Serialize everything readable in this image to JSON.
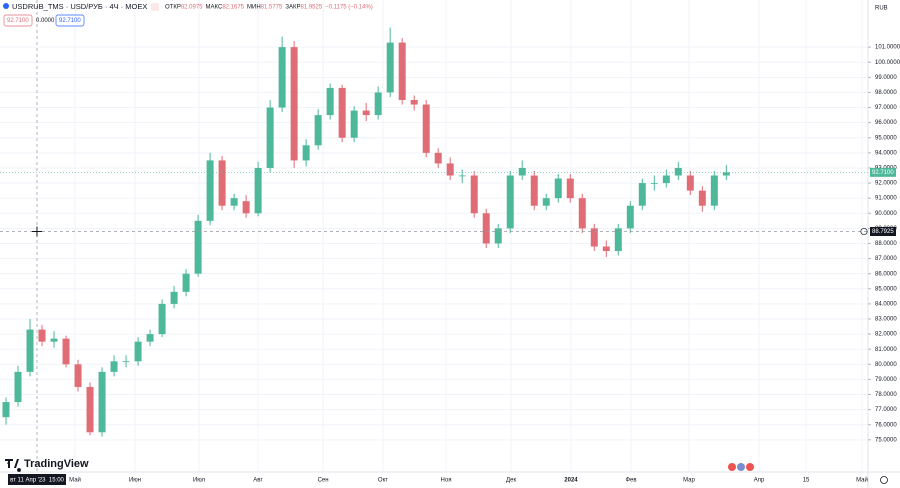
{
  "chart_data": {
    "type": "candlestick",
    "symbol": "USDRUB_TMS · USD/РУБ · 4Ч · MOEX",
    "ohlc_legend": [
      {
        "label": "ОТКР",
        "value": "82.0975"
      },
      {
        "label": "МАКС",
        "value": "82.1675"
      },
      {
        "label": "МИН",
        "value": "81.5775"
      },
      {
        "label": "ЗАКР",
        "value": "81.9525"
      }
    ],
    "change": "−0.1175 (−0.14%)",
    "inputs": [
      "92.7100",
      "0.0000",
      "92.7100"
    ],
    "currency": "RUB",
    "crosshair_time": "вт 11 Апр '23  15:00",
    "brand": "TradingView",
    "up_color": "#4db89a",
    "down_color": "#e06c75",
    "candles": {
      "open": [
        76.5,
        77.5,
        79.5,
        82.3,
        81.5,
        81.7,
        80.0,
        78.5,
        75.5,
        79.5,
        80.2,
        80.2,
        81.5,
        82.0,
        84.0,
        84.8,
        86.0,
        89.5,
        93.5,
        90.5,
        90.8,
        90.0,
        93.0,
        97.0,
        101.0,
        93.5,
        94.5,
        96.5,
        98.3,
        95.0,
        96.8,
        96.5,
        98.0,
        101.3,
        97.5,
        97.2,
        94.0,
        93.3,
        92.5,
        92.5,
        90.0,
        88.0,
        89.0,
        92.5,
        92.5,
        90.5,
        91.0,
        92.3,
        91.0,
        89.0,
        87.8,
        87.5,
        89.0,
        90.5,
        92.0,
        92.0,
        92.5,
        92.5,
        91.5,
        90.5,
        92.5
      ],
      "high": [
        77.8,
        79.9,
        83.0,
        82.6,
        82.2,
        81.9,
        80.3,
        78.8,
        79.8,
        80.6,
        80.6,
        81.8,
        82.3,
        84.3,
        85.2,
        86.3,
        89.9,
        94.0,
        93.8,
        91.3,
        91.2,
        93.4,
        97.5,
        101.7,
        101.4,
        94.9,
        96.9,
        98.6,
        98.5,
        97.1,
        97.3,
        98.4,
        102.3,
        101.6,
        97.8,
        97.5,
        94.3,
        93.7,
        92.9,
        92.8,
        90.3,
        89.3,
        92.8,
        93.5,
        92.8,
        91.3,
        92.6,
        92.6,
        91.3,
        89.3,
        88.2,
        89.3,
        90.8,
        92.3,
        92.5,
        92.9,
        93.4,
        92.8,
        91.8,
        92.8,
        93.2
      ],
      "low": [
        76.0,
        77.2,
        79.2,
        81.2,
        81.1,
        79.8,
        78.2,
        75.3,
        75.2,
        79.2,
        79.8,
        79.9,
        81.2,
        81.8,
        83.7,
        84.5,
        85.8,
        89.2,
        90.2,
        90.2,
        89.7,
        89.8,
        92.7,
        96.7,
        93.0,
        93.1,
        94.2,
        96.2,
        94.7,
        94.7,
        96.1,
        96.2,
        97.7,
        97.2,
        96.8,
        93.7,
        93.0,
        92.2,
        92.0,
        89.7,
        87.7,
        87.7,
        88.7,
        92.2,
        90.2,
        90.2,
        90.7,
        90.7,
        88.7,
        87.5,
        87.1,
        87.2,
        88.7,
        90.2,
        91.5,
        91.7,
        92.2,
        91.2,
        90.1,
        90.2,
        92.2
      ],
      "close": [
        77.5,
        79.5,
        82.3,
        81.5,
        81.7,
        80.0,
        78.5,
        75.5,
        79.5,
        80.2,
        80.2,
        81.5,
        82.0,
        84.0,
        84.8,
        86.0,
        89.5,
        93.5,
        90.5,
        91.0,
        90.0,
        93.0,
        97.0,
        101.0,
        93.5,
        94.5,
        96.5,
        98.3,
        95.0,
        96.8,
        96.5,
        98.0,
        101.3,
        97.5,
        97.2,
        94.0,
        93.3,
        92.5,
        92.5,
        90.0,
        88.0,
        89.0,
        92.5,
        93.0,
        90.5,
        91.0,
        92.3,
        91.0,
        89.0,
        87.8,
        87.5,
        89.0,
        90.5,
        92.0,
        92.0,
        92.5,
        93.0,
        91.5,
        90.5,
        92.5,
        92.71
      ]
    },
    "xlim": [
      -0.5,
      71.8
    ],
    "xticks": [
      {
        "value": 5.75,
        "label": "Май"
      },
      {
        "value": 10.75,
        "label": "Июн"
      },
      {
        "value": 16.08,
        "label": "Июл"
      },
      {
        "value": 20.99,
        "label": "Авг"
      },
      {
        "value": 26.41,
        "label": "Сен"
      },
      {
        "value": 31.4,
        "label": "Окт"
      },
      {
        "value": 36.65,
        "label": "Ноя"
      },
      {
        "value": 42.07,
        "label": "Дек"
      },
      {
        "value": 47.06,
        "label": "2024"
      },
      {
        "value": 52.06,
        "label": "Фев"
      },
      {
        "value": 56.89,
        "label": "Мар"
      },
      {
        "value": 62.72,
        "label": "Апр"
      },
      {
        "value": 66.64,
        "label": "15"
      },
      {
        "value": 71.3,
        "label": "Май"
      }
    ],
    "ylim": [
      72.87,
      104.12
    ],
    "yticks": [
      {
        "value": 75,
        "label": "75.0000"
      },
      {
        "value": 76,
        "label": "76.0000"
      },
      {
        "value": 77,
        "label": "77.0000"
      },
      {
        "value": 78,
        "label": "78.0000"
      },
      {
        "value": 79,
        "label": "79.0000"
      },
      {
        "value": 80,
        "label": "80.0000"
      },
      {
        "value": 81,
        "label": "81.0000"
      },
      {
        "value": 82,
        "label": "82.0000"
      },
      {
        "value": 83,
        "label": "83.0000"
      },
      {
        "value": 84,
        "label": "84.0000"
      },
      {
        "value": 85,
        "label": "85.0000"
      },
      {
        "value": 86,
        "label": "86.0000"
      },
      {
        "value": 87,
        "label": "87.0000"
      },
      {
        "value": 88,
        "label": "88.0000"
      },
      {
        "value": 89,
        "label": "89.0000"
      },
      {
        "value": 90,
        "label": "90.0000"
      },
      {
        "value": 91,
        "label": "91.0000"
      },
      {
        "value": 92,
        "label": "92.0000"
      },
      {
        "value": 93,
        "label": "93.0000"
      },
      {
        "value": 94,
        "label": "94.0000"
      },
      {
        "value": 95,
        "label": "95.0000"
      },
      {
        "value": 96,
        "label": "96.0000"
      },
      {
        "value": 97,
        "label": "97.0000"
      },
      {
        "value": 98,
        "label": "98.0000"
      },
      {
        "value": 99,
        "label": "99.0000"
      },
      {
        "value": 100,
        "label": "100.0000"
      },
      {
        "value": 101,
        "label": "101.0000"
      }
    ],
    "last_price": {
      "value": 92.71,
      "label": "92.7100"
    },
    "crosshair_price": {
      "value": 88.7925,
      "label": "88.7925"
    },
    "grid": true
  }
}
